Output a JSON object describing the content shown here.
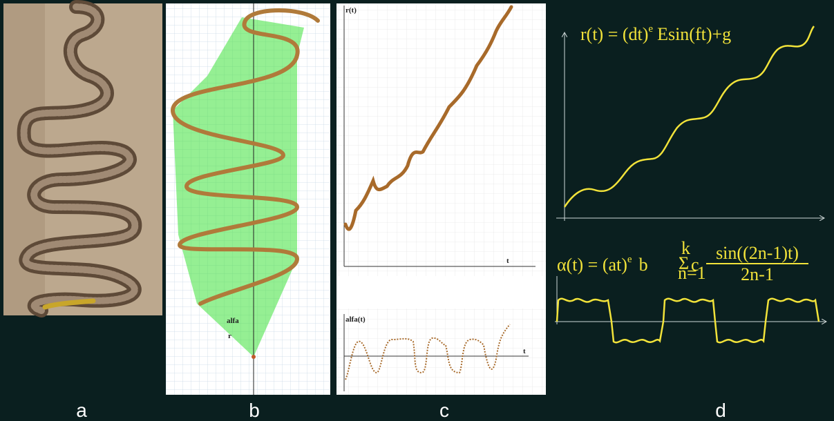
{
  "panels": [
    {
      "label": "a"
    },
    {
      "label": "b",
      "annotations": [
        "alfa",
        "r"
      ]
    },
    {
      "label": "c",
      "top_plot": {
        "y_label": "r(t)",
        "x_label": "t"
      },
      "bottom_plot": {
        "y_label": "alfa(t)",
        "x_label": "t"
      }
    },
    {
      "label": "d",
      "formula_r": {
        "lhs": "r(t) = (dt)",
        "sup": "e",
        "rhs": "Esin(ft)+g"
      },
      "formula_alpha": {
        "lhs": "α(t) = (at)",
        "sup": "e",
        "pre": "b",
        "sum": "Σ",
        "upper": "k",
        "lower": "n=1",
        "coef": "c",
        "numerator": "sin((2n-1)t)",
        "denominator": "2n-1"
      }
    }
  ]
}
